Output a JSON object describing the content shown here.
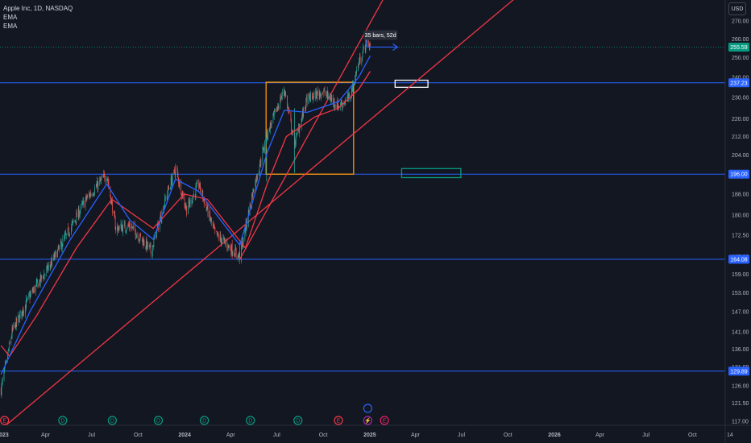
{
  "legend": {
    "symbol": "Apple Inc, 1D, NASDAQ",
    "indicators": [
      "EMA",
      "EMA"
    ]
  },
  "currency": "USD",
  "measure_label": "35 bars, 52d",
  "colors": {
    "background": "#131722",
    "candle_up": "#26a69a",
    "candle_down": "#ef5350",
    "ema_fast": "#2962ff",
    "ema_slow": "#f23645",
    "horizontal_line": "#2962ff",
    "trendline": "#f23645",
    "range_box": "#ff9800",
    "axis_text": "#b2b5be",
    "price_badge": "#2962ff",
    "last_price_badge": "#089981"
  },
  "chart_data": {
    "type": "candlestick",
    "title": "Apple Inc, 1D, NASDAQ",
    "x_axis": {
      "ticks": [
        {
          "label": "2023",
          "date": "2023-01-01"
        },
        {
          "label": "Apr",
          "date": "2023-04-01"
        },
        {
          "label": "Jul",
          "date": "2023-07-01"
        },
        {
          "label": "Oct",
          "date": "2023-10-01"
        },
        {
          "label": "2024",
          "date": "2024-01-01"
        },
        {
          "label": "Apr",
          "date": "2024-04-01"
        },
        {
          "label": "Jul",
          "date": "2024-07-01"
        },
        {
          "label": "Oct",
          "date": "2024-10-01"
        },
        {
          "label": "2025",
          "date": "2025-01-01"
        },
        {
          "label": "Apr",
          "date": "2025-04-01"
        },
        {
          "label": "Jul",
          "date": "2025-07-01"
        },
        {
          "label": "Oct",
          "date": "2025-10-01"
        },
        {
          "label": "2026",
          "date": "2026-01-01"
        },
        {
          "label": "Apr",
          "date": "2026-04-01"
        },
        {
          "label": "Jul",
          "date": "2026-07-01"
        },
        {
          "label": "Oct",
          "date": "2026-10-01"
        },
        {
          "label": "14",
          "date": "2026-12-14"
        }
      ]
    },
    "y_axis": {
      "scale": "log",
      "ticks": [
        "270.00",
        "260.00",
        "250.00",
        "240.00",
        "230.00",
        "220.00",
        "212.00",
        "204.00",
        "196.00",
        "188.00",
        "180.00",
        "172.50",
        "165.00",
        "159.00",
        "153.00",
        "147.00",
        "141.00",
        "136.00",
        "131.00",
        "126.00",
        "121.50",
        "117.00"
      ],
      "range": [
        116,
        282
      ]
    },
    "price_path": [
      {
        "date": "2023-01-03",
        "close": 125
      },
      {
        "date": "2023-01-25",
        "close": 141
      },
      {
        "date": "2023-03-01",
        "close": 152
      },
      {
        "date": "2023-04-10",
        "close": 162
      },
      {
        "date": "2023-05-20",
        "close": 175
      },
      {
        "date": "2023-06-20",
        "close": 186
      },
      {
        "date": "2023-07-31",
        "close": 196
      },
      {
        "date": "2023-08-18",
        "close": 175
      },
      {
        "date": "2023-09-15",
        "close": 176
      },
      {
        "date": "2023-10-27",
        "close": 167
      },
      {
        "date": "2023-11-30",
        "close": 190
      },
      {
        "date": "2023-12-14",
        "close": 198
      },
      {
        "date": "2024-01-05",
        "close": 182
      },
      {
        "date": "2024-01-29",
        "close": 192
      },
      {
        "date": "2024-03-01",
        "close": 173
      },
      {
        "date": "2024-04-19",
        "close": 165
      },
      {
        "date": "2024-05-15",
        "close": 189
      },
      {
        "date": "2024-06-12",
        "close": 213
      },
      {
        "date": "2024-07-16",
        "close": 234
      },
      {
        "date": "2024-08-05",
        "close": 209
      },
      {
        "date": "2024-08-30",
        "close": 229
      },
      {
        "date": "2024-09-30",
        "close": 233
      },
      {
        "date": "2024-10-31",
        "close": 226
      },
      {
        "date": "2024-11-22",
        "close": 230
      },
      {
        "date": "2024-12-10",
        "close": 247
      },
      {
        "date": "2024-12-26",
        "close": 259
      },
      {
        "date": "2025-01-02",
        "close": 256
      }
    ],
    "ema_fast_path": [
      {
        "date": "2023-01-03",
        "value": 129
      },
      {
        "date": "2023-03-01",
        "value": 147
      },
      {
        "date": "2023-05-20",
        "value": 171
      },
      {
        "date": "2023-07-31",
        "value": 192
      },
      {
        "date": "2023-09-15",
        "value": 178
      },
      {
        "date": "2023-10-31",
        "value": 171
      },
      {
        "date": "2023-12-14",
        "value": 194
      },
      {
        "date": "2024-01-29",
        "value": 189
      },
      {
        "date": "2024-04-19",
        "value": 169
      },
      {
        "date": "2024-06-12",
        "value": 205
      },
      {
        "date": "2024-07-16",
        "value": 224
      },
      {
        "date": "2024-08-30",
        "value": 223
      },
      {
        "date": "2024-10-31",
        "value": 228
      },
      {
        "date": "2024-12-10",
        "value": 240
      },
      {
        "date": "2025-01-02",
        "value": 251
      }
    ],
    "ema_slow_path": [
      {
        "date": "2023-01-03",
        "value": 137
      },
      {
        "date": "2023-01-20",
        "value": 134
      },
      {
        "date": "2023-03-15",
        "value": 146
      },
      {
        "date": "2023-06-01",
        "value": 168
      },
      {
        "date": "2023-08-10",
        "value": 186
      },
      {
        "date": "2023-10-31",
        "value": 175
      },
      {
        "date": "2023-12-31",
        "value": 188
      },
      {
        "date": "2024-02-15",
        "value": 186
      },
      {
        "date": "2024-04-30",
        "value": 168
      },
      {
        "date": "2024-06-12",
        "value": 192
      },
      {
        "date": "2024-07-20",
        "value": 212
      },
      {
        "date": "2024-09-15",
        "value": 221
      },
      {
        "date": "2024-10-31",
        "value": 225
      },
      {
        "date": "2024-12-10",
        "value": 234
      },
      {
        "date": "2025-01-02",
        "value": 243
      }
    ],
    "horizontal_lines": [
      {
        "value": 237.23,
        "label": "237.23"
      },
      {
        "value": 196.0,
        "label": "196.00"
      },
      {
        "value": 164.08,
        "label": "164.08"
      },
      {
        "value": 129.89,
        "label": "129.89"
      }
    ],
    "last_price": {
      "value": 255.59,
      "label": "255.59"
    },
    "trendlines": [
      {
        "from": {
          "date": "2023-01-03",
          "value": 115
        },
        "to": {
          "date": "2025-12-20",
          "value": 300
        }
      },
      {
        "from": {
          "date": "2024-04-19",
          "value": 164.08
        },
        "to": {
          "date": "2025-02-28",
          "value": 300
        }
      }
    ],
    "range_box": {
      "start": "2024-06-10",
      "end": "2024-11-30",
      "low": 196,
      "high": 237.5
    },
    "measure": {
      "start": "2024-12-26",
      "end": "2025-02-25",
      "value": 255.59,
      "label": "35 bars, 52d"
    },
    "target_boxes": [
      {
        "start": "2025-02-20",
        "end": "2025-04-26",
        "low": 235,
        "high": 238.5,
        "color": "#ffffff"
      },
      {
        "start": "2025-03-05",
        "end": "2025-06-30",
        "low": 194.6,
        "high": 198.3,
        "color": "#089981"
      }
    ],
    "event_markers": [
      {
        "date": "2023-01-10",
        "letter": "E",
        "color": "#f23645"
      },
      {
        "date": "2023-05-05",
        "letter": "D",
        "color": "#089981"
      },
      {
        "date": "2023-08-11",
        "letter": "D",
        "color": "#089981"
      },
      {
        "date": "2023-11-10",
        "letter": "D",
        "color": "#089981"
      },
      {
        "date": "2024-02-09",
        "letter": "D",
        "color": "#089981"
      },
      {
        "date": "2024-05-10",
        "letter": "D",
        "color": "#089981"
      },
      {
        "date": "2024-08-12",
        "letter": "D",
        "color": "#089981"
      },
      {
        "date": "2024-10-31",
        "letter": "E",
        "color": "#f23645"
      },
      {
        "date": "2024-12-28",
        "letter": "⚡",
        "color": "#9c27b0"
      },
      {
        "date": "2025-01-30",
        "letter": "E",
        "color": "#e91e63"
      }
    ],
    "grid": false
  }
}
